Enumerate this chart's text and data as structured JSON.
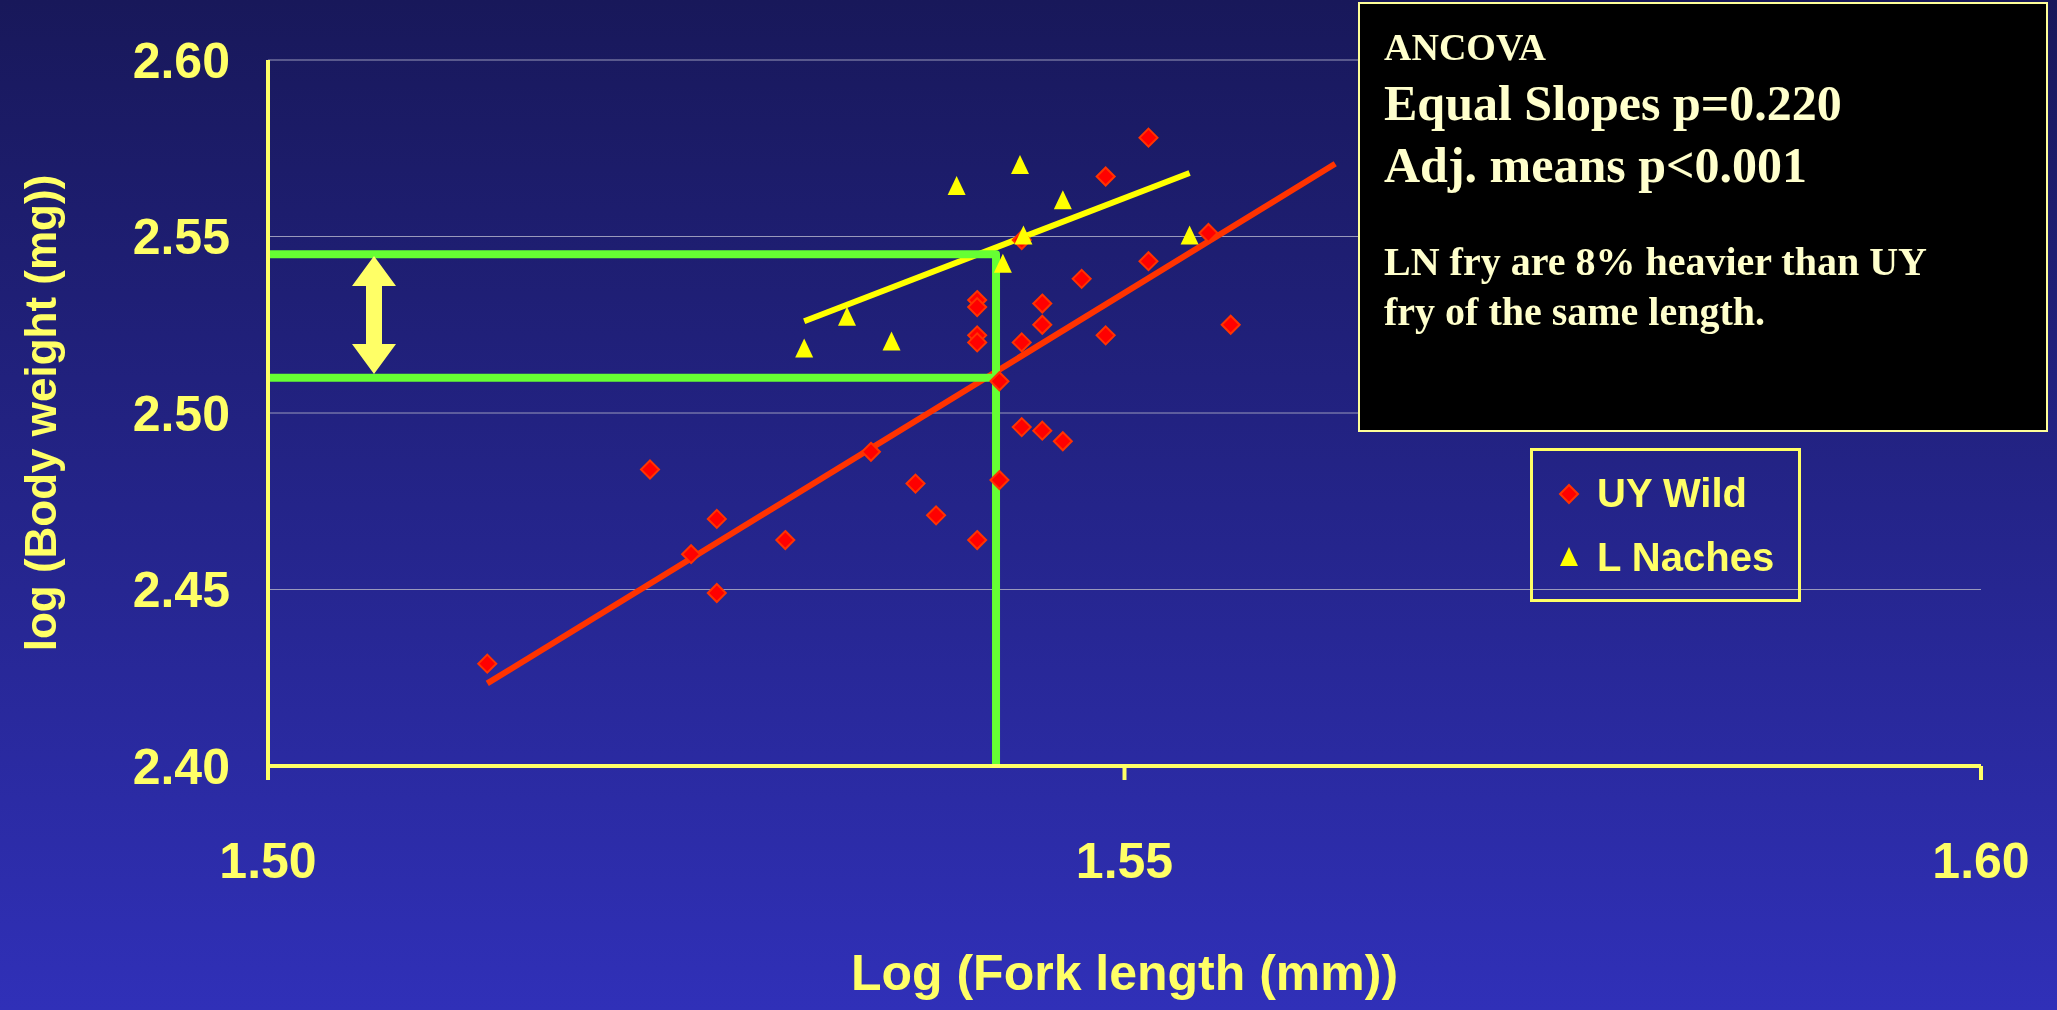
{
  "chart_data": {
    "type": "scatter",
    "xlabel": "Log (Fork length  (mm))",
    "ylabel": "log (Body weight (mg))",
    "xlim": [
      1.5,
      1.6
    ],
    "ylim": [
      2.4,
      2.6
    ],
    "xticks": [
      {
        "value": 1.5,
        "label": "1.50"
      },
      {
        "value": 1.55,
        "label": "1.55"
      },
      {
        "value": 1.6,
        "label": "1.60"
      }
    ],
    "yticks": [
      {
        "value": 2.4,
        "label": "2.40"
      },
      {
        "value": 2.45,
        "label": "2.45"
      },
      {
        "value": 2.5,
        "label": "2.50"
      },
      {
        "value": 2.55,
        "label": "2.55"
      },
      {
        "value": 2.6,
        "label": "2.60"
      }
    ],
    "grid": "y",
    "legend": "right",
    "annotations": [
      "ANCOVA",
      "Equal Slopes p=0.220",
      "Adj. means p<0.001",
      "LN fry are 8% heavier than UY fry of the same length."
    ],
    "series": [
      {
        "name": "UY Wild",
        "color": "#ff0000",
        "marker": "diamond",
        "x": [
          1.5128,
          1.5223,
          1.5247,
          1.5262,
          1.5262,
          1.5302,
          1.5352,
          1.5378,
          1.539,
          1.5414,
          1.5414,
          1.5414,
          1.5414,
          1.5414,
          1.5427,
          1.5427,
          1.544,
          1.544,
          1.544,
          1.5452,
          1.5452,
          1.5452,
          1.5464,
          1.5475,
          1.5489,
          1.5489,
          1.5514,
          1.5514,
          1.5549,
          1.5562
        ],
        "values": [
          2.429,
          2.484,
          2.46,
          2.47,
          2.449,
          2.464,
          2.489,
          2.48,
          2.471,
          2.532,
          2.53,
          2.522,
          2.52,
          2.464,
          2.509,
          2.481,
          2.549,
          2.52,
          2.496,
          2.531,
          2.525,
          2.495,
          2.492,
          2.538,
          2.567,
          2.522,
          2.578,
          2.543,
          2.551,
          2.525
        ]
      },
      {
        "name": "L Naches",
        "color": "#ffff00",
        "marker": "triangle",
        "x": [
          1.5313,
          1.5338,
          1.5364,
          1.5402,
          1.5429,
          1.5439,
          1.5441,
          1.5464,
          1.5538
        ],
        "values": [
          2.518,
          2.527,
          2.52,
          2.564,
          2.542,
          2.57,
          2.55,
          2.56,
          2.55
        ]
      },
      {
        "type": "line",
        "color": "#ff3300",
        "marker": "none",
        "x": [
          1.5128,
          1.5623
        ],
        "values": [
          2.4234,
          2.5706
        ]
      },
      {
        "type": "line",
        "color": "#ffff00",
        "marker": "none",
        "x": [
          1.5313,
          1.5538
        ],
        "values": [
          2.526,
          2.568
        ]
      },
      {
        "type": "line",
        "color": "#66ff33",
        "marker": "none",
        "x": [
          1.5,
          1.5425,
          1.5425
        ],
        "values": [
          2.545,
          2.545,
          2.4
        ]
      },
      {
        "type": "line",
        "color": "#66ff33",
        "marker": "none",
        "x": [
          1.5,
          1.5425
        ],
        "values": [
          2.51,
          2.51
        ]
      }
    ]
  }
}
